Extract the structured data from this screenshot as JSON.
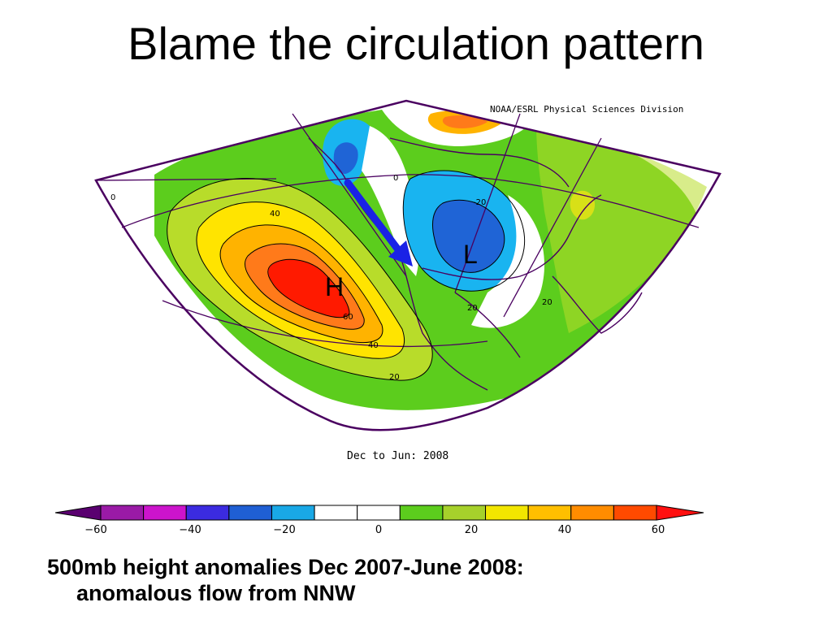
{
  "slide": {
    "title": "Blame the circulation pattern",
    "caption_line1": "500mb height anomalies Dec 2007-June 2008:",
    "caption_line2": "anomalous flow from NNW"
  },
  "map": {
    "credit": "NOAA/ESRL Physical Sciences Division",
    "period_label": "Dec to Jun: 2008",
    "high_label": "H",
    "low_label": "L",
    "contour_labels": [
      "0",
      "40",
      "60",
      "40",
      "20",
      "0",
      "-20",
      "20",
      "20"
    ],
    "colorbar_ticks": [
      "−60",
      "−40",
      "−20",
      "0",
      "20",
      "40",
      "60"
    ],
    "colorbar_colors": [
      "#5a0070",
      "#9a1aa6",
      "#cc14cc",
      "#3b2be0",
      "#1f5fd4",
      "#19a8e6",
      "#ffffff",
      "#ffffff",
      "#5ccd1d",
      "#a6d12b",
      "#f2e600",
      "#ffbf00",
      "#ff8c00",
      "#ff4a00",
      "#ff1010"
    ],
    "anomaly_colors": {
      "strong_positive": "#ff1a00",
      "positive_60": "#ff7a1a",
      "positive_40": "#ffb300",
      "positive_30": "#ffe400",
      "positive_20": "#b8dc2a",
      "positive_10": "#5ccd1d",
      "neutral": "#ffffff",
      "negative_10": "#19b4f0",
      "negative_20": "#1f64d6",
      "boundary": "#4a0060",
      "arrow": "#1a22e6"
    }
  }
}
